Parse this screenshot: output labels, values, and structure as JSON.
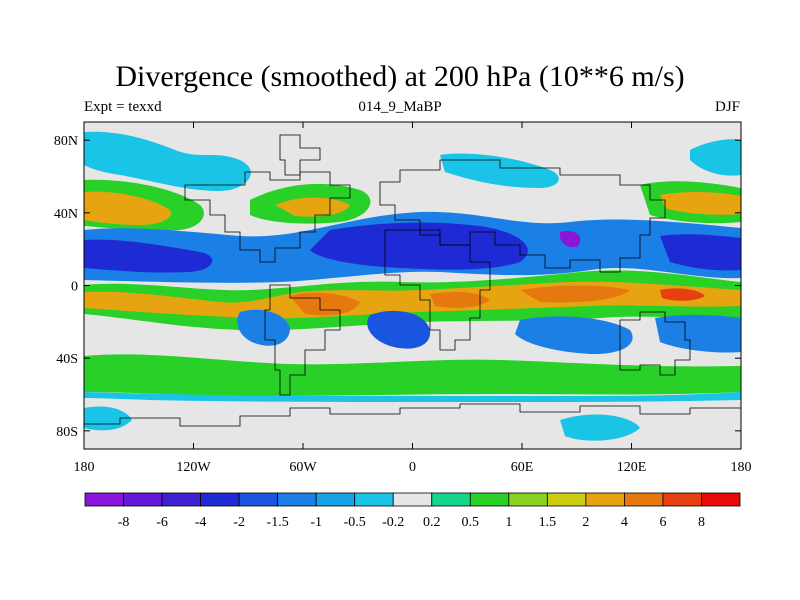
{
  "title": "Divergence (smoothed) at 200 hPa (10**6 m/s)",
  "subtitle_left": "Expt = texxd",
  "subtitle_center": "014_9_MaBP",
  "subtitle_right": "DJF",
  "chart_data": {
    "type": "heatmap",
    "title": "Divergence (smoothed) at 200 hPa (10**6 m/s)",
    "x_ticks": [
      "180",
      "120W",
      "60W",
      "0",
      "60E",
      "120E",
      "180"
    ],
    "x_tick_values": [
      -180,
      -120,
      -60,
      0,
      60,
      120,
      180
    ],
    "y_ticks": [
      "80N",
      "40N",
      "0",
      "40S",
      "80S"
    ],
    "y_tick_values": [
      80,
      40,
      0,
      -40,
      -80
    ],
    "xlim": [
      -180,
      180
    ],
    "ylim": [
      -90,
      90
    ],
    "colorbar_labels": [
      "-8",
      "-6",
      "-4",
      "-2",
      "-1.5",
      "-1",
      "-0.5",
      "-0.2",
      "0.2",
      "0.5",
      "1",
      "1.5",
      "2",
      "4",
      "6",
      "8"
    ],
    "colorbar_colors": [
      "#8a16d9",
      "#6618d9",
      "#4020d0",
      "#1e2ad4",
      "#1a55e0",
      "#1a80e6",
      "#1aa2e6",
      "#1ac4e6",
      "#e6e6e6",
      "#16d68c",
      "#28d028",
      "#8ad222",
      "#cccc10",
      "#e6a510",
      "#e67810",
      "#e64010",
      "#e60a0a"
    ]
  }
}
